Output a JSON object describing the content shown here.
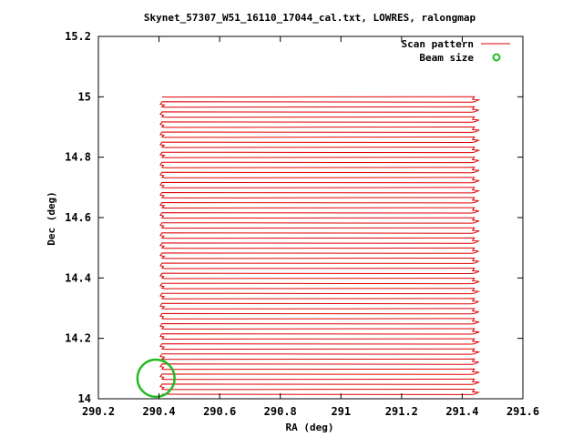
{
  "chart_data": {
    "type": "line",
    "title": "Skynet_57307_W51_16110_17044_cal.txt, LOWRES, ralongmap",
    "xlabel": "RA (deg)",
    "ylabel": "Dec (deg)",
    "xlim": [
      290.2,
      291.6
    ],
    "ylim": [
      14.0,
      15.2
    ],
    "xticks": [
      290.2,
      290.4,
      290.6,
      290.8,
      291.0,
      291.2,
      291.4,
      291.6
    ],
    "xtick_labels": [
      "290.2",
      "290.4",
      "290.6",
      "290.8",
      "291",
      "291.2",
      "291.4",
      "291.6"
    ],
    "yticks": [
      14.0,
      14.2,
      14.4,
      14.6,
      14.8,
      15.0,
      15.2
    ],
    "ytick_labels": [
      "14",
      "14.2",
      "14.4",
      "14.6",
      "14.8",
      "15",
      "15.2"
    ],
    "grid": false,
    "legend_position": "top-right",
    "series": [
      {
        "name": "Scan pattern",
        "color": "#e00000",
        "style": "raster",
        "ra_start": 290.41,
        "ra_end": 291.44,
        "dec_start": 14.015,
        "dec_end": 15.005,
        "row_spacing": 0.0167
      },
      {
        "name": "Beam size",
        "color": "#22bb22",
        "style": "circle",
        "center_ra": 290.39,
        "center_dec": 14.068,
        "diameter_dec": 0.123
      }
    ]
  }
}
